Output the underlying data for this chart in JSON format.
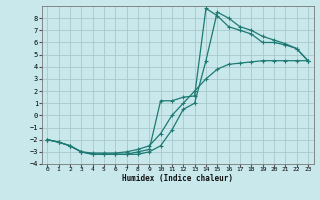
{
  "xlabel": "Humidex (Indice chaleur)",
  "xlim": [
    -0.5,
    23.5
  ],
  "ylim": [
    -4,
    9
  ],
  "yticks": [
    -4,
    -3,
    -2,
    -1,
    0,
    1,
    2,
    3,
    4,
    5,
    6,
    7,
    8
  ],
  "xticks": [
    0,
    1,
    2,
    3,
    4,
    5,
    6,
    7,
    8,
    9,
    10,
    11,
    12,
    13,
    14,
    15,
    16,
    17,
    18,
    19,
    20,
    21,
    22,
    23
  ],
  "bg_color": "#c8e8ec",
  "line_color": "#1d7a72",
  "grid_color": "#a8c8cc",
  "line1_x": [
    0,
    1,
    2,
    3,
    4,
    5,
    6,
    7,
    8,
    9,
    10,
    11,
    12,
    13,
    14,
    15,
    16,
    17,
    18,
    19,
    20,
    21,
    22,
    23
  ],
  "line1_y": [
    -2.0,
    -2.2,
    -2.5,
    -3.0,
    -3.2,
    -3.2,
    -3.2,
    -3.2,
    -3.0,
    -2.8,
    1.2,
    1.2,
    1.5,
    1.6,
    8.8,
    8.2,
    7.3,
    7.0,
    6.7,
    6.0,
    6.0,
    5.8,
    5.5,
    4.5
  ],
  "line2_x": [
    0,
    1,
    2,
    3,
    4,
    5,
    6,
    7,
    8,
    9,
    10,
    11,
    12,
    13,
    14,
    15,
    16,
    17,
    18,
    19,
    20,
    21,
    22,
    23
  ],
  "line2_y": [
    -2.0,
    -2.2,
    -2.5,
    -3.0,
    -3.2,
    -3.2,
    -3.2,
    -3.2,
    -3.2,
    -3.0,
    -2.5,
    -1.2,
    0.5,
    1.0,
    4.5,
    8.5,
    8.0,
    7.3,
    7.0,
    6.5,
    6.2,
    5.9,
    5.5,
    4.5
  ],
  "line3_x": [
    0,
    1,
    2,
    3,
    4,
    5,
    6,
    7,
    8,
    9,
    10,
    11,
    12,
    13,
    14,
    15,
    16,
    17,
    18,
    19,
    20,
    21,
    22,
    23
  ],
  "line3_y": [
    -2.0,
    -2.2,
    -2.5,
    -3.0,
    -3.1,
    -3.1,
    -3.1,
    -3.0,
    -2.8,
    -2.5,
    -1.5,
    0.0,
    1.0,
    2.0,
    3.0,
    3.8,
    4.2,
    4.3,
    4.4,
    4.5,
    4.5,
    4.5,
    4.5,
    4.5
  ]
}
